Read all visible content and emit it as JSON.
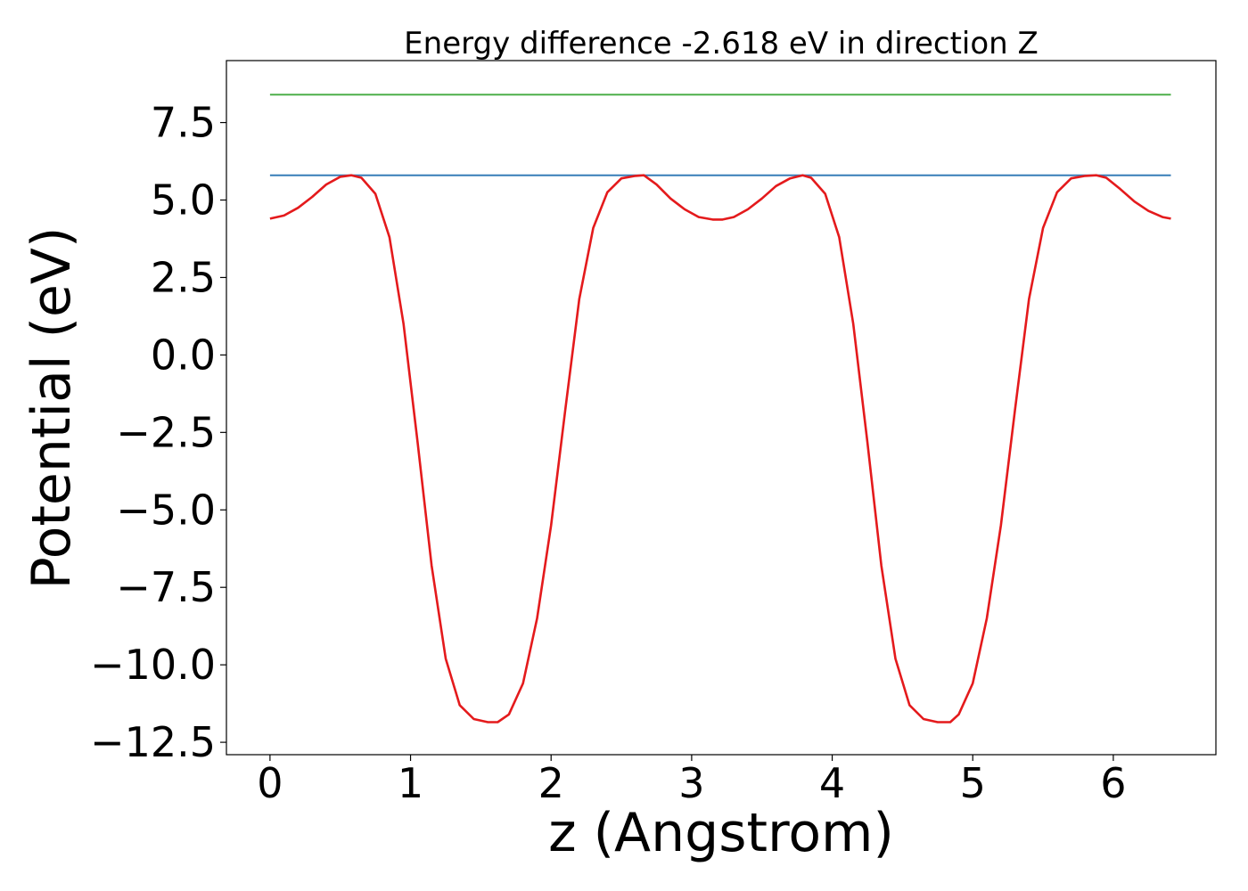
{
  "chart_data": {
    "type": "line",
    "title": "Energy difference -2.618 eV in direction Z",
    "xlabel": "z (Angstrom)",
    "ylabel": "Potential (eV)",
    "xlim": [
      -0.31,
      6.73
    ],
    "ylim": [
      -12.9,
      9.5
    ],
    "xticks": [
      0,
      1,
      2,
      3,
      4,
      5,
      6
    ],
    "xtick_labels": [
      "0",
      "1",
      "2",
      "3",
      "4",
      "5",
      "6"
    ],
    "yticks": [
      7.5,
      5.0,
      2.5,
      0.0,
      -2.5,
      -5.0,
      -7.5,
      -10.0,
      -12.5
    ],
    "ytick_labels": [
      "7.5",
      "5.0",
      "2.5",
      "0.0",
      "−2.5",
      "−5.0",
      "−7.5",
      "−10.0",
      "−12.5"
    ],
    "grid": false,
    "series": [
      {
        "color": "#4daf4a",
        "x": [
          0,
          6.41
        ],
        "y": [
          8.4,
          8.4
        ]
      },
      {
        "color": "#377eb8",
        "x": [
          0,
          6.41
        ],
        "y": [
          5.8,
          5.8
        ]
      },
      {
        "color": "#e41a1c",
        "x": [
          0.0,
          0.1,
          0.2,
          0.3,
          0.4,
          0.5,
          0.58,
          0.65,
          0.75,
          0.85,
          0.95,
          1.05,
          1.15,
          1.25,
          1.35,
          1.45,
          1.55,
          1.62,
          1.7,
          1.8,
          1.9,
          2.0,
          2.1,
          2.2,
          2.3,
          2.4,
          2.5,
          2.6,
          2.66,
          2.75,
          2.85,
          2.95,
          3.05,
          3.15,
          3.22,
          3.3,
          3.4,
          3.5,
          3.6,
          3.7,
          3.79,
          3.85,
          3.95,
          4.05,
          4.15,
          4.25,
          4.35,
          4.45,
          4.55,
          4.65,
          4.75,
          4.84,
          4.9,
          5.0,
          5.1,
          5.2,
          5.3,
          5.4,
          5.5,
          5.6,
          5.7,
          5.8,
          5.88,
          5.95,
          6.05,
          6.15,
          6.25,
          6.35,
          6.41
        ],
        "y": [
          4.4,
          4.5,
          4.75,
          5.1,
          5.5,
          5.75,
          5.8,
          5.72,
          5.2,
          3.8,
          1.0,
          -2.8,
          -6.8,
          -9.8,
          -11.3,
          -11.75,
          -11.85,
          -11.85,
          -11.6,
          -10.6,
          -8.5,
          -5.5,
          -1.8,
          1.8,
          4.1,
          5.25,
          5.7,
          5.78,
          5.8,
          5.5,
          5.05,
          4.7,
          4.45,
          4.37,
          4.37,
          4.45,
          4.7,
          5.05,
          5.45,
          5.7,
          5.8,
          5.72,
          5.2,
          3.8,
          1.0,
          -2.8,
          -6.8,
          -9.8,
          -11.3,
          -11.75,
          -11.85,
          -11.85,
          -11.6,
          -10.6,
          -8.5,
          -5.5,
          -1.8,
          1.8,
          4.1,
          5.25,
          5.7,
          5.78,
          5.8,
          5.72,
          5.35,
          4.95,
          4.65,
          4.45,
          4.4
        ]
      }
    ]
  }
}
